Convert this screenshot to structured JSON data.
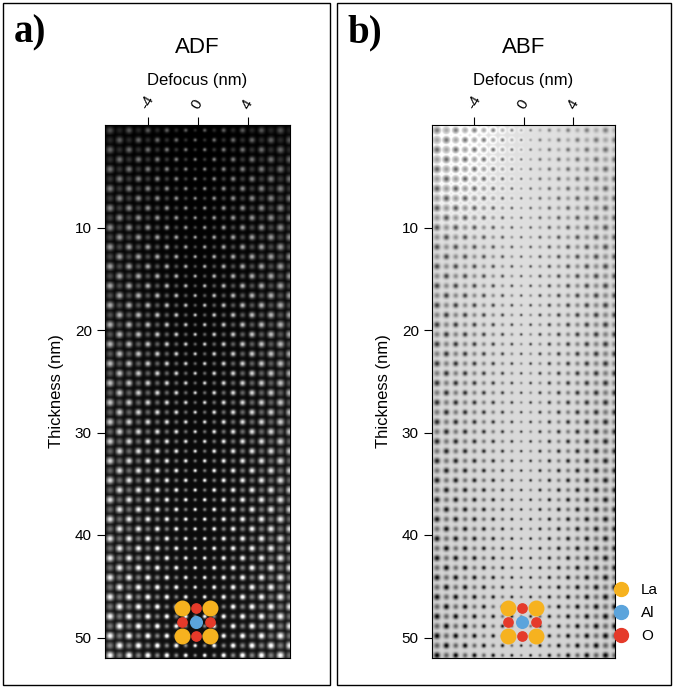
{
  "chart_data": [
    {
      "type": "image",
      "panel": "a)",
      "title": "ADF",
      "xlabel": "Defocus (nm)",
      "ylabel": "Thickness (nm)",
      "xlim": [
        -7.4,
        7.4
      ],
      "xticks": [
        -4,
        0,
        4
      ],
      "ylim": [
        52,
        0
      ],
      "yticks": [
        10,
        20,
        30,
        40,
        50
      ]
    },
    {
      "type": "image",
      "panel": "b)",
      "title": "ABF",
      "xlabel": "Defocus (nm)",
      "ylabel": "Thickness (nm)",
      "xlim": [
        -7.4,
        7.4
      ],
      "xticks": [
        -4,
        0,
        4
      ],
      "ylim": [
        52,
        0
      ],
      "yticks": [
        10,
        20,
        30,
        40,
        50
      ],
      "legend": "lower right",
      "atoms": [
        {
          "name": "La",
          "color": "#f6b21f"
        },
        {
          "name": "Al",
          "color": "#5ba4dc"
        },
        {
          "name": "O",
          "color": "#e53a2a"
        }
      ]
    }
  ]
}
